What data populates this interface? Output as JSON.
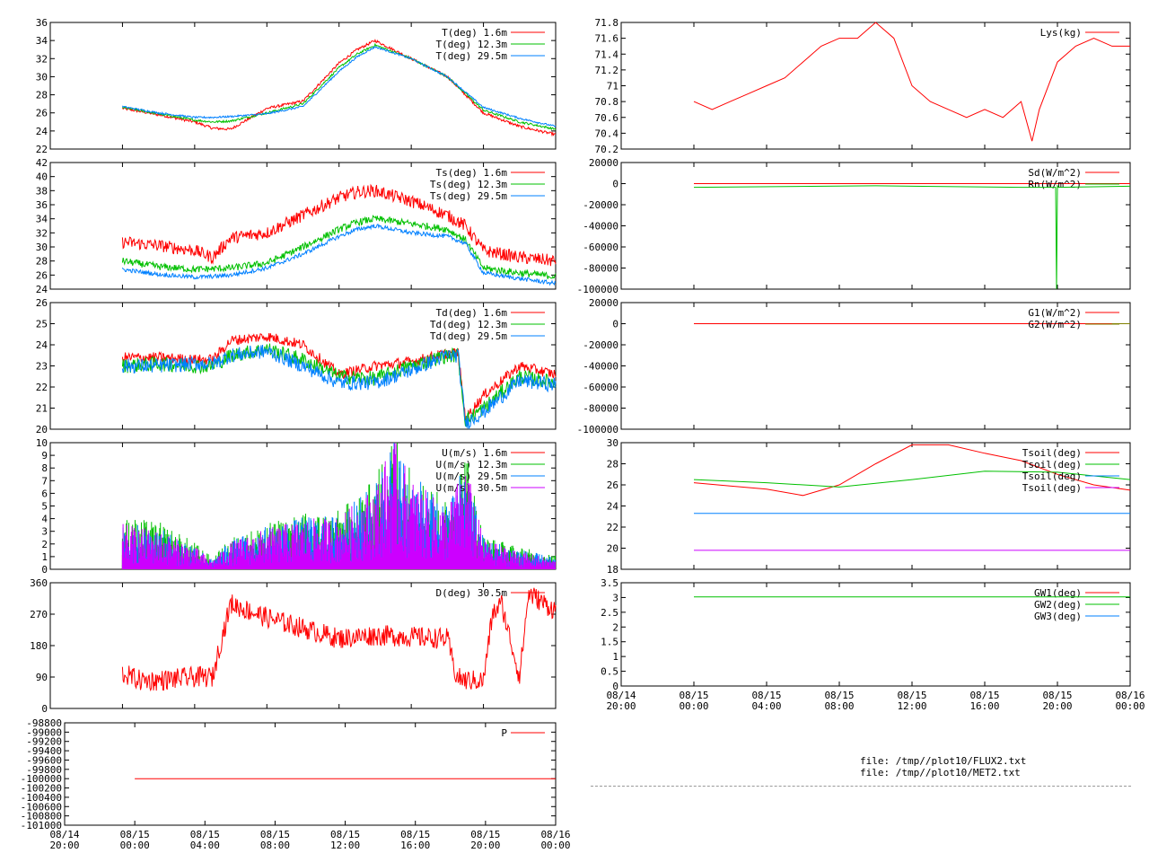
{
  "chart_data": [
    {
      "id": "temp",
      "type": "line",
      "xlim": [
        -4,
        24
      ],
      "ylim": [
        22,
        36
      ],
      "yticks": [
        "22",
        "24",
        "26",
        "28",
        "30",
        "32",
        "34",
        "36"
      ],
      "series": [
        {
          "name": "T(deg)  1.6m",
          "color": "#ff0000",
          "noise": 0.15,
          "x": [
            0,
            2,
            4,
            5,
            6,
            8,
            10,
            12,
            13,
            14,
            16,
            18,
            20,
            22,
            24
          ],
          "y": [
            26.5,
            25.8,
            25,
            24.3,
            24.2,
            26.5,
            27.3,
            31.5,
            33.0,
            34.0,
            32,
            30,
            26,
            24.5,
            23.6
          ]
        },
        {
          "name": "T(deg) 12.3m",
          "color": "#00c000",
          "noise": 0.12,
          "x": [
            0,
            2,
            4,
            5,
            6,
            8,
            10,
            12,
            13,
            14,
            16,
            18,
            20,
            22,
            24
          ],
          "y": [
            26.6,
            25.9,
            25.2,
            25.0,
            25.1,
            26.0,
            27.0,
            31.0,
            32.5,
            33.5,
            32,
            30,
            26.3,
            25.0,
            24.2
          ]
        },
        {
          "name": "T(deg) 29.5m",
          "color": "#0080ff",
          "noise": 0.1,
          "x": [
            0,
            2,
            4,
            5,
            6,
            8,
            10,
            12,
            13,
            14,
            16,
            18,
            20,
            22,
            24
          ],
          "y": [
            26.7,
            26.0,
            25.5,
            25.5,
            25.6,
            25.9,
            26.7,
            30.6,
            32.2,
            33.3,
            32,
            30,
            26.6,
            25.4,
            24.5
          ]
        }
      ]
    },
    {
      "id": "ts",
      "type": "line",
      "xlim": [
        -4,
        24
      ],
      "ylim": [
        24,
        42
      ],
      "yticks": [
        "24",
        "26",
        "28",
        "30",
        "32",
        "34",
        "36",
        "38",
        "40",
        "42"
      ],
      "series": [
        {
          "name": "Ts(deg)  1.6m",
          "color": "#ff0000",
          "noise": 0.9,
          "x": [
            0,
            2,
            4,
            5,
            6,
            8,
            10,
            12,
            13,
            14,
            16,
            18,
            19,
            20,
            22,
            24
          ],
          "y": [
            30.7,
            30.2,
            29.5,
            28.5,
            31.3,
            32.0,
            34.5,
            37.0,
            37.8,
            38.0,
            36.5,
            34.5,
            33,
            29.5,
            28.5,
            28.0
          ]
        },
        {
          "name": "Ts(deg) 12.3m",
          "color": "#00c000",
          "noise": 0.5,
          "x": [
            0,
            2,
            4,
            5,
            6,
            8,
            10,
            12,
            13,
            14,
            16,
            18,
            19,
            20,
            22,
            24
          ],
          "y": [
            28.0,
            27.2,
            26.8,
            26.9,
            27.0,
            27.7,
            30.0,
            32.5,
            33.5,
            34.0,
            33.3,
            32.5,
            31,
            27.0,
            26.3,
            25.8
          ]
        },
        {
          "name": "Ts(deg) 29.5m",
          "color": "#0080ff",
          "noise": 0.3,
          "x": [
            0,
            2,
            4,
            5,
            6,
            8,
            10,
            12,
            13,
            14,
            16,
            18,
            19,
            20,
            22,
            24
          ],
          "y": [
            26.8,
            26.1,
            25.7,
            25.8,
            26.0,
            27.0,
            29.0,
            31.5,
            32.5,
            33.0,
            32.0,
            31.5,
            30.5,
            26.3,
            25.5,
            24.8
          ]
        }
      ]
    },
    {
      "id": "td",
      "type": "line",
      "xlim": [
        -4,
        24
      ],
      "ylim": [
        20,
        26
      ],
      "yticks": [
        "20",
        "21",
        "22",
        "23",
        "24",
        "25",
        "26"
      ],
      "series": [
        {
          "name": "Td(deg)  1.6m",
          "color": "#ff0000",
          "noise": 0.25,
          "x": [
            0,
            2,
            4,
            5,
            6,
            8,
            10,
            12,
            14,
            16,
            18,
            18.6,
            19,
            20,
            22,
            24
          ],
          "y": [
            23.4,
            23.4,
            23.3,
            23.3,
            24.2,
            24.4,
            24.0,
            22.6,
            23.0,
            23.2,
            23.6,
            23.6,
            20.5,
            21.6,
            23.0,
            22.6
          ]
        },
        {
          "name": "Td(deg) 12.3m",
          "color": "#00c000",
          "noise": 0.35,
          "x": [
            0,
            2,
            4,
            5,
            6,
            8,
            10,
            12,
            14,
            16,
            18,
            18.6,
            19,
            20,
            22,
            24
          ],
          "y": [
            23.0,
            23.1,
            23.0,
            23.0,
            23.5,
            23.8,
            23.3,
            22.5,
            22.4,
            23.0,
            23.5,
            23.5,
            20.4,
            21.0,
            22.5,
            22.2
          ]
        },
        {
          "name": "Td(deg) 29.5m",
          "color": "#0080ff",
          "noise": 0.35,
          "x": [
            0,
            2,
            4,
            5,
            6,
            8,
            10,
            12,
            14,
            16,
            18,
            18.6,
            19,
            20,
            22,
            24
          ],
          "y": [
            23.0,
            23.0,
            23.1,
            23.1,
            23.5,
            23.7,
            23.0,
            22.2,
            22.2,
            22.8,
            23.5,
            23.5,
            20.3,
            20.8,
            22.3,
            22.1
          ]
        }
      ]
    },
    {
      "id": "wind",
      "type": "area",
      "xlim": [
        -4,
        24
      ],
      "ylim": [
        0,
        10
      ],
      "yticks": [
        "0",
        "1",
        "2",
        "3",
        "4",
        "5",
        "6",
        "7",
        "8",
        "9",
        "10"
      ],
      "series": [
        {
          "name": "U(m/s)  1.6m",
          "color": "#ff0000",
          "x": [
            0,
            2,
            4,
            5,
            6,
            8,
            10,
            12,
            14,
            15,
            16,
            18,
            19,
            20,
            22,
            24
          ],
          "y": [
            0.8,
            0.6,
            0.4,
            0.2,
            0.5,
            0.7,
            1.0,
            1.0,
            1.5,
            2.0,
            1.5,
            1.0,
            2.0,
            0.5,
            0.4,
            0.3
          ]
        },
        {
          "name": "U(m/s) 12.3m",
          "color": "#00c000",
          "x": [
            0,
            2,
            4,
            5,
            6,
            8,
            10,
            12,
            14,
            15,
            16,
            18,
            19,
            20,
            22,
            24
          ],
          "y": [
            2.3,
            2.1,
            1.2,
            0.5,
            1.4,
            2.0,
            2.5,
            2.6,
            4.0,
            6.5,
            4.5,
            3.0,
            5.5,
            1.5,
            1.0,
            0.6
          ]
        },
        {
          "name": "U(m/s) 29.5m",
          "color": "#0080ff",
          "x": [
            0,
            2,
            4,
            5,
            6,
            8,
            10,
            12,
            14,
            15,
            16,
            18,
            19,
            20,
            22,
            24
          ],
          "y": [
            2.1,
            1.8,
            1.1,
            0.4,
            1.3,
            1.9,
            2.3,
            2.4,
            3.8,
            6.0,
            4.2,
            2.8,
            5.0,
            1.4,
            0.9,
            0.5
          ]
        },
        {
          "name": "U(m/s) 30.5m",
          "color": "#cc00ff",
          "x": [
            0,
            2,
            4,
            5,
            6,
            8,
            10,
            12,
            14,
            15,
            16,
            18,
            19,
            20,
            22,
            24
          ],
          "y": [
            2.0,
            1.7,
            1.0,
            0.4,
            1.2,
            1.8,
            2.2,
            2.3,
            3.7,
            5.8,
            4.0,
            2.7,
            4.8,
            1.3,
            0.8,
            0.4
          ]
        }
      ]
    },
    {
      "id": "dir",
      "type": "line",
      "xlim": [
        -4,
        24
      ],
      "ylim": [
        0,
        360
      ],
      "yticks": [
        "0",
        "90",
        "180",
        "270",
        "360"
      ],
      "series": [
        {
          "name": "D(deg)  30.5m",
          "color": "#ff0000",
          "noise": 30,
          "x": [
            0,
            1,
            2,
            4,
            5,
            5.3,
            6,
            8,
            10,
            12,
            14,
            16,
            18,
            18.5,
            19,
            20,
            20.5,
            21,
            22,
            22.5,
            24
          ],
          "y": [
            100,
            80,
            80,
            90,
            90,
            160,
            300,
            260,
            230,
            200,
            210,
            205,
            200,
            90,
            80,
            80,
            270,
            300,
            90,
            330,
            280
          ]
        }
      ]
    },
    {
      "id": "p",
      "type": "line",
      "xlim": [
        -4,
        24
      ],
      "ylim": [
        -101000,
        -98800
      ],
      "yticks": [
        "-101000",
        "-100800",
        "-100600",
        "-100400",
        "-100200",
        "-100000",
        "-99800",
        "-99600",
        "-99400",
        "-99200",
        "-99000",
        "-98800"
      ],
      "xticks": [
        "08/14\n20:00",
        "08/15\n00:00",
        "08/15\n04:00",
        "08/15\n08:00",
        "08/15\n12:00",
        "08/15\n16:00",
        "08/15\n20:00",
        "08/16\n00:00"
      ],
      "series": [
        {
          "name": "P",
          "color": "#ff0000",
          "x": [
            0,
            24
          ],
          "y": [
            -100000,
            -100000
          ]
        }
      ]
    },
    {
      "id": "lys",
      "type": "line",
      "xlim": [
        -4,
        24
      ],
      "ylim": [
        70.2,
        71.8
      ],
      "yticks": [
        "70.2",
        "70.4",
        "70.6",
        "70.8",
        "71",
        "71.2",
        "71.4",
        "71.6",
        "71.8"
      ],
      "series": [
        {
          "name": "Lys(kg)",
          "color": "#ff0000",
          "x": [
            0,
            1,
            2,
            3,
            4,
            5,
            6,
            7,
            8,
            9,
            10,
            11,
            12,
            13,
            14,
            15,
            16,
            17,
            18,
            18.6,
            19,
            20,
            21,
            22,
            23,
            24
          ],
          "y": [
            70.8,
            70.7,
            70.8,
            70.9,
            71.0,
            71.1,
            71.3,
            71.5,
            71.6,
            71.6,
            71.8,
            71.6,
            71.0,
            70.8,
            70.7,
            70.6,
            70.7,
            70.6,
            70.8,
            70.3,
            70.7,
            71.3,
            71.5,
            71.6,
            71.5,
            71.5
          ]
        }
      ]
    },
    {
      "id": "rad",
      "type": "line",
      "xlim": [
        -4,
        24
      ],
      "ylim": [
        -100000,
        20000
      ],
      "yticks": [
        "-100000",
        "-80000",
        "-60000",
        "-40000",
        "-20000",
        "0",
        "20000"
      ],
      "series": [
        {
          "name": "Sd(W/m^2)",
          "color": "#ff0000",
          "x": [
            0,
            24
          ],
          "y": [
            0,
            0
          ]
        },
        {
          "name": "Rn(W/m^2)",
          "color": "#00c000",
          "x": [
            0,
            10,
            18,
            19.9,
            19.95,
            20,
            20.05,
            24
          ],
          "y": [
            -3500,
            -2000,
            -3500,
            -3500,
            -100000,
            -2000,
            -3500,
            -2500
          ]
        }
      ]
    },
    {
      "id": "g",
      "type": "line",
      "xlim": [
        -4,
        24
      ],
      "ylim": [
        -100000,
        20000
      ],
      "yticks": [
        "-100000",
        "-80000",
        "-60000",
        "-40000",
        "-20000",
        "0",
        "20000"
      ],
      "series": [
        {
          "name": "G1(W/m^2)",
          "color": "#ff0000",
          "x": [
            0,
            24
          ],
          "y": [
            0,
            0
          ]
        },
        {
          "name": "G2(W/m^2)",
          "color": "#808000",
          "x": [
            23,
            24
          ],
          "y": [
            0,
            0
          ]
        }
      ]
    },
    {
      "id": "tsoil",
      "type": "line",
      "xlim": [
        -4,
        24
      ],
      "ylim": [
        18,
        30
      ],
      "yticks": [
        "18",
        "20",
        "22",
        "24",
        "26",
        "28",
        "30"
      ],
      "series": [
        {
          "name": "Tsoil(deg)",
          "color": "#ff0000",
          "x": [
            0,
            2,
            4,
            6,
            8,
            10,
            12,
            14,
            16,
            18,
            20,
            22,
            24
          ],
          "y": [
            26.2,
            25.9,
            25.6,
            25.0,
            26.0,
            28.0,
            29.8,
            29.8,
            29.0,
            28.3,
            27.0,
            26.0,
            25.5
          ]
        },
        {
          "name": "Tsoil(deg)",
          "color": "#00c000",
          "x": [
            0,
            4,
            8,
            12,
            16,
            20,
            24
          ],
          "y": [
            26.5,
            26.2,
            25.8,
            26.5,
            27.3,
            27.2,
            26.5
          ]
        },
        {
          "name": "Tsoil(deg)",
          "color": "#0080ff",
          "x": [
            0,
            24
          ],
          "y": [
            23.3,
            23.3
          ]
        },
        {
          "name": "Tsoil(deg)",
          "color": "#cc00ff",
          "x": [
            0,
            24
          ],
          "y": [
            19.8,
            19.8
          ]
        }
      ]
    },
    {
      "id": "gw",
      "type": "line",
      "xlim": [
        -4,
        24
      ],
      "ylim": [
        0,
        3.5
      ],
      "yticks": [
        "0",
        "0.5",
        "1",
        "1.5",
        "2",
        "2.5",
        "3",
        "3.5"
      ],
      "xticks": [
        "08/14\n20:00",
        "08/15\n00:00",
        "08/15\n04:00",
        "08/15\n08:00",
        "08/15\n12:00",
        "08/15\n16:00",
        "08/15\n20:00",
        "08/16\n00:00"
      ],
      "series": [
        {
          "name": "GW1(deg)",
          "color": "#ff0000",
          "x": [],
          "y": []
        },
        {
          "name": "GW2(deg)",
          "color": "#00c000",
          "x": [
            0,
            24
          ],
          "y": [
            3.02,
            3.02
          ]
        },
        {
          "name": "GW3(deg)",
          "color": "#0080ff",
          "x": [],
          "y": []
        }
      ]
    }
  ],
  "footer": {
    "line1": "file: /tmp//plot10/FLUX2.txt",
    "line2": "file: /tmp//plot10/MET2.txt"
  }
}
